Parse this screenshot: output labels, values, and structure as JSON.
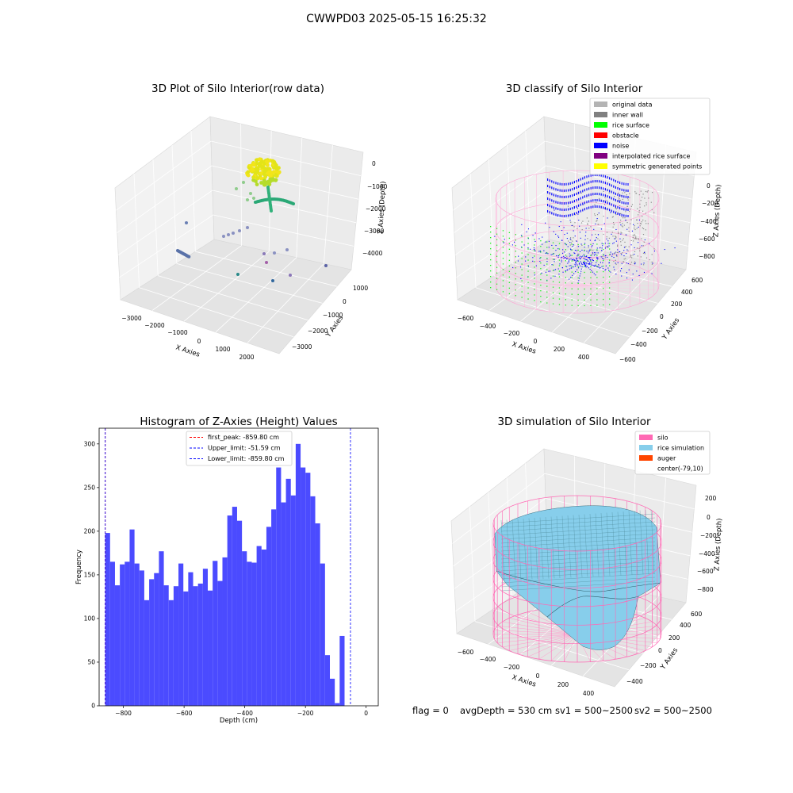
{
  "figure": {
    "suptitle": "CWWPD03 2025-05-15 16:25:32"
  },
  "status": {
    "flag": "flag = 0",
    "avg_depth": "avgDepth = 530 cm",
    "sv1": "sv1 = 500~2500",
    "sv2": "sv2 = 500~2500"
  },
  "colors": {
    "histogram_bar": "#4b4bff",
    "first_peak_line": "#ff0000",
    "limit_lines": "#0000ff",
    "original_data": "#b4b4b4",
    "inner_wall": "#808080",
    "rice_surface": "#00ff00",
    "obstacle": "#ff0000",
    "noise": "#0000ff",
    "interpolated_rice_surface": "#800080",
    "symmetric_generated_points": "#ffff00",
    "silo": "#ff69b4",
    "rice_simulation": "#87ceeb",
    "auger": "#ff4500",
    "pane": "#f2f2f2"
  },
  "chart_data": [
    {
      "type": "scatter",
      "projection": "3d",
      "title": "3D Plot of Silo Interior(row data)",
      "xlabel": "X Axies",
      "ylabel": "Y Axies",
      "zlabel": "Z Axies (Depth)",
      "x_ticks": [
        "−3000",
        "−2000",
        "−1000",
        "0",
        "1000",
        "2000"
      ],
      "y_ticks": [
        "−3000",
        "−2000",
        "−1000",
        "0",
        "1000"
      ],
      "z_ticks": [
        "0",
        "−1000",
        "−2000",
        "−3000",
        "−4000"
      ],
      "grid": true
    },
    {
      "type": "scatter",
      "projection": "3d",
      "title": "3D classify of Silo Interior",
      "xlabel": "X Axies",
      "ylabel": "Y Axies",
      "zlabel": "Z Axies (Depth)",
      "x_ticks": [
        "−600",
        "−400",
        "−200",
        "0",
        "200",
        "400"
      ],
      "y_ticks": [
        "−600",
        "−400",
        "−200",
        "0",
        "200",
        "400",
        "600"
      ],
      "z_ticks": [
        "0",
        "−200",
        "−400",
        "−600",
        "−800"
      ],
      "legend": [
        "original data",
        "inner wall",
        "rice surface",
        "obstacle",
        "noise",
        "interpolated rice surface",
        "symmetric generated points"
      ],
      "legend_position": "upper-right",
      "grid": true
    },
    {
      "type": "bar",
      "title": "Histogram of Z-Axies (Height) Values",
      "xlabel": "Depth (cm)",
      "ylabel": "Frequency",
      "xlim": [
        -880,
        40
      ],
      "ylim": [
        0,
        318
      ],
      "bin_width": 16.1,
      "bin_start": -860,
      "values": [
        198,
        165,
        138,
        162,
        165,
        202,
        163,
        155,
        121,
        145,
        152,
        177,
        138,
        121,
        137,
        163,
        131,
        153,
        137,
        140,
        157,
        132,
        166,
        143,
        170,
        218,
        228,
        212,
        177,
        165,
        164,
        183,
        179,
        205,
        225,
        273,
        233,
        260,
        241,
        300,
        273,
        267,
        240,
        209,
        163,
        58,
        31,
        3,
        80
      ],
      "x_ticks": [
        -800,
        -600,
        -400,
        -200,
        0
      ],
      "x_tick_labels": [
        "−800",
        "−600",
        "−400",
        "−200",
        "0"
      ],
      "y_ticks": [
        0,
        50,
        100,
        150,
        200,
        250,
        300
      ],
      "y_tick_labels": [
        "0",
        "50",
        "100",
        "150",
        "200",
        "250",
        "300"
      ],
      "vlines": [
        {
          "name": "first_peak: -859.80 cm",
          "x": -859.8,
          "style": "dashed",
          "color": "#ff0000"
        },
        {
          "name": "Upper_limit: -51.59 cm",
          "x": -51.59,
          "style": "dashed",
          "color": "#0000ff"
        },
        {
          "name": "Lower_limit: -859.80 cm",
          "x": -859.8,
          "style": "dashed",
          "color": "#0000ff"
        }
      ],
      "legend_position": "upper-center",
      "grid": false
    },
    {
      "type": "area",
      "projection": "3d",
      "title": "3D simulation of Silo Interior",
      "xlabel": "X Axies",
      "ylabel": "Y Axies",
      "zlabel": "Z Axies (Depth)",
      "x_ticks": [
        "−600",
        "−400",
        "−200",
        "0",
        "200",
        "400"
      ],
      "y_ticks": [
        "−400",
        "−200",
        "0",
        "200",
        "400",
        "600"
      ],
      "z_ticks": [
        "200",
        "0",
        "−200",
        "−400",
        "−600",
        "−800"
      ],
      "legend": [
        "silo",
        "rice simulation",
        "auger",
        "center(-79,10)"
      ],
      "legend_position": "upper-right",
      "grid": true
    }
  ]
}
